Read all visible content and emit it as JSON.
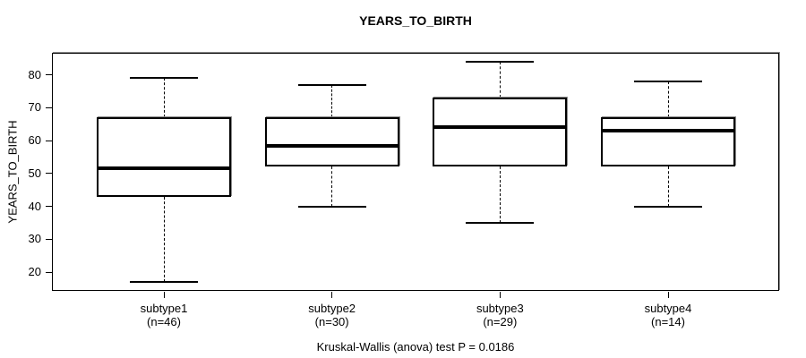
{
  "chart_data": {
    "type": "boxplot",
    "title": "YEARS_TO_BIRTH",
    "xlabel": "",
    "ylabel": "YEARS_TO_BIRTH",
    "caption": "Kruskal-Wallis (anova) test P = 0.0186",
    "ylim": [
      14.3,
      86.7
    ],
    "yticks": [
      20,
      30,
      40,
      50,
      60,
      70,
      80
    ],
    "grid": false,
    "legend": false,
    "categories": [
      "subtype1",
      "subtype2",
      "subtype3",
      "subtype4"
    ],
    "category_counts": [
      "(n=46)",
      "(n=30)",
      "(n=29)",
      "(n=14)"
    ],
    "series": [
      {
        "name": "subtype1",
        "n": 46,
        "whisker_low": 17,
        "q1": 43,
        "median": 51.5,
        "q3": 67,
        "whisker_high": 79
      },
      {
        "name": "subtype2",
        "n": 30,
        "whisker_low": 40,
        "q1": 52,
        "median": 58.5,
        "q3": 67,
        "whisker_high": 77
      },
      {
        "name": "subtype3",
        "n": 29,
        "whisker_low": 35,
        "q1": 52,
        "median": 64,
        "q3": 73,
        "whisker_high": 84
      },
      {
        "name": "subtype4",
        "n": 14,
        "whisker_low": 40,
        "q1": 52,
        "median": 63,
        "q3": 67,
        "whisker_high": 78
      }
    ],
    "colors": {
      "foreground": "#000000",
      "background": "#ffffff",
      "box_fill": "#ffffff",
      "frame_shadow": "#8c8c8c"
    }
  }
}
